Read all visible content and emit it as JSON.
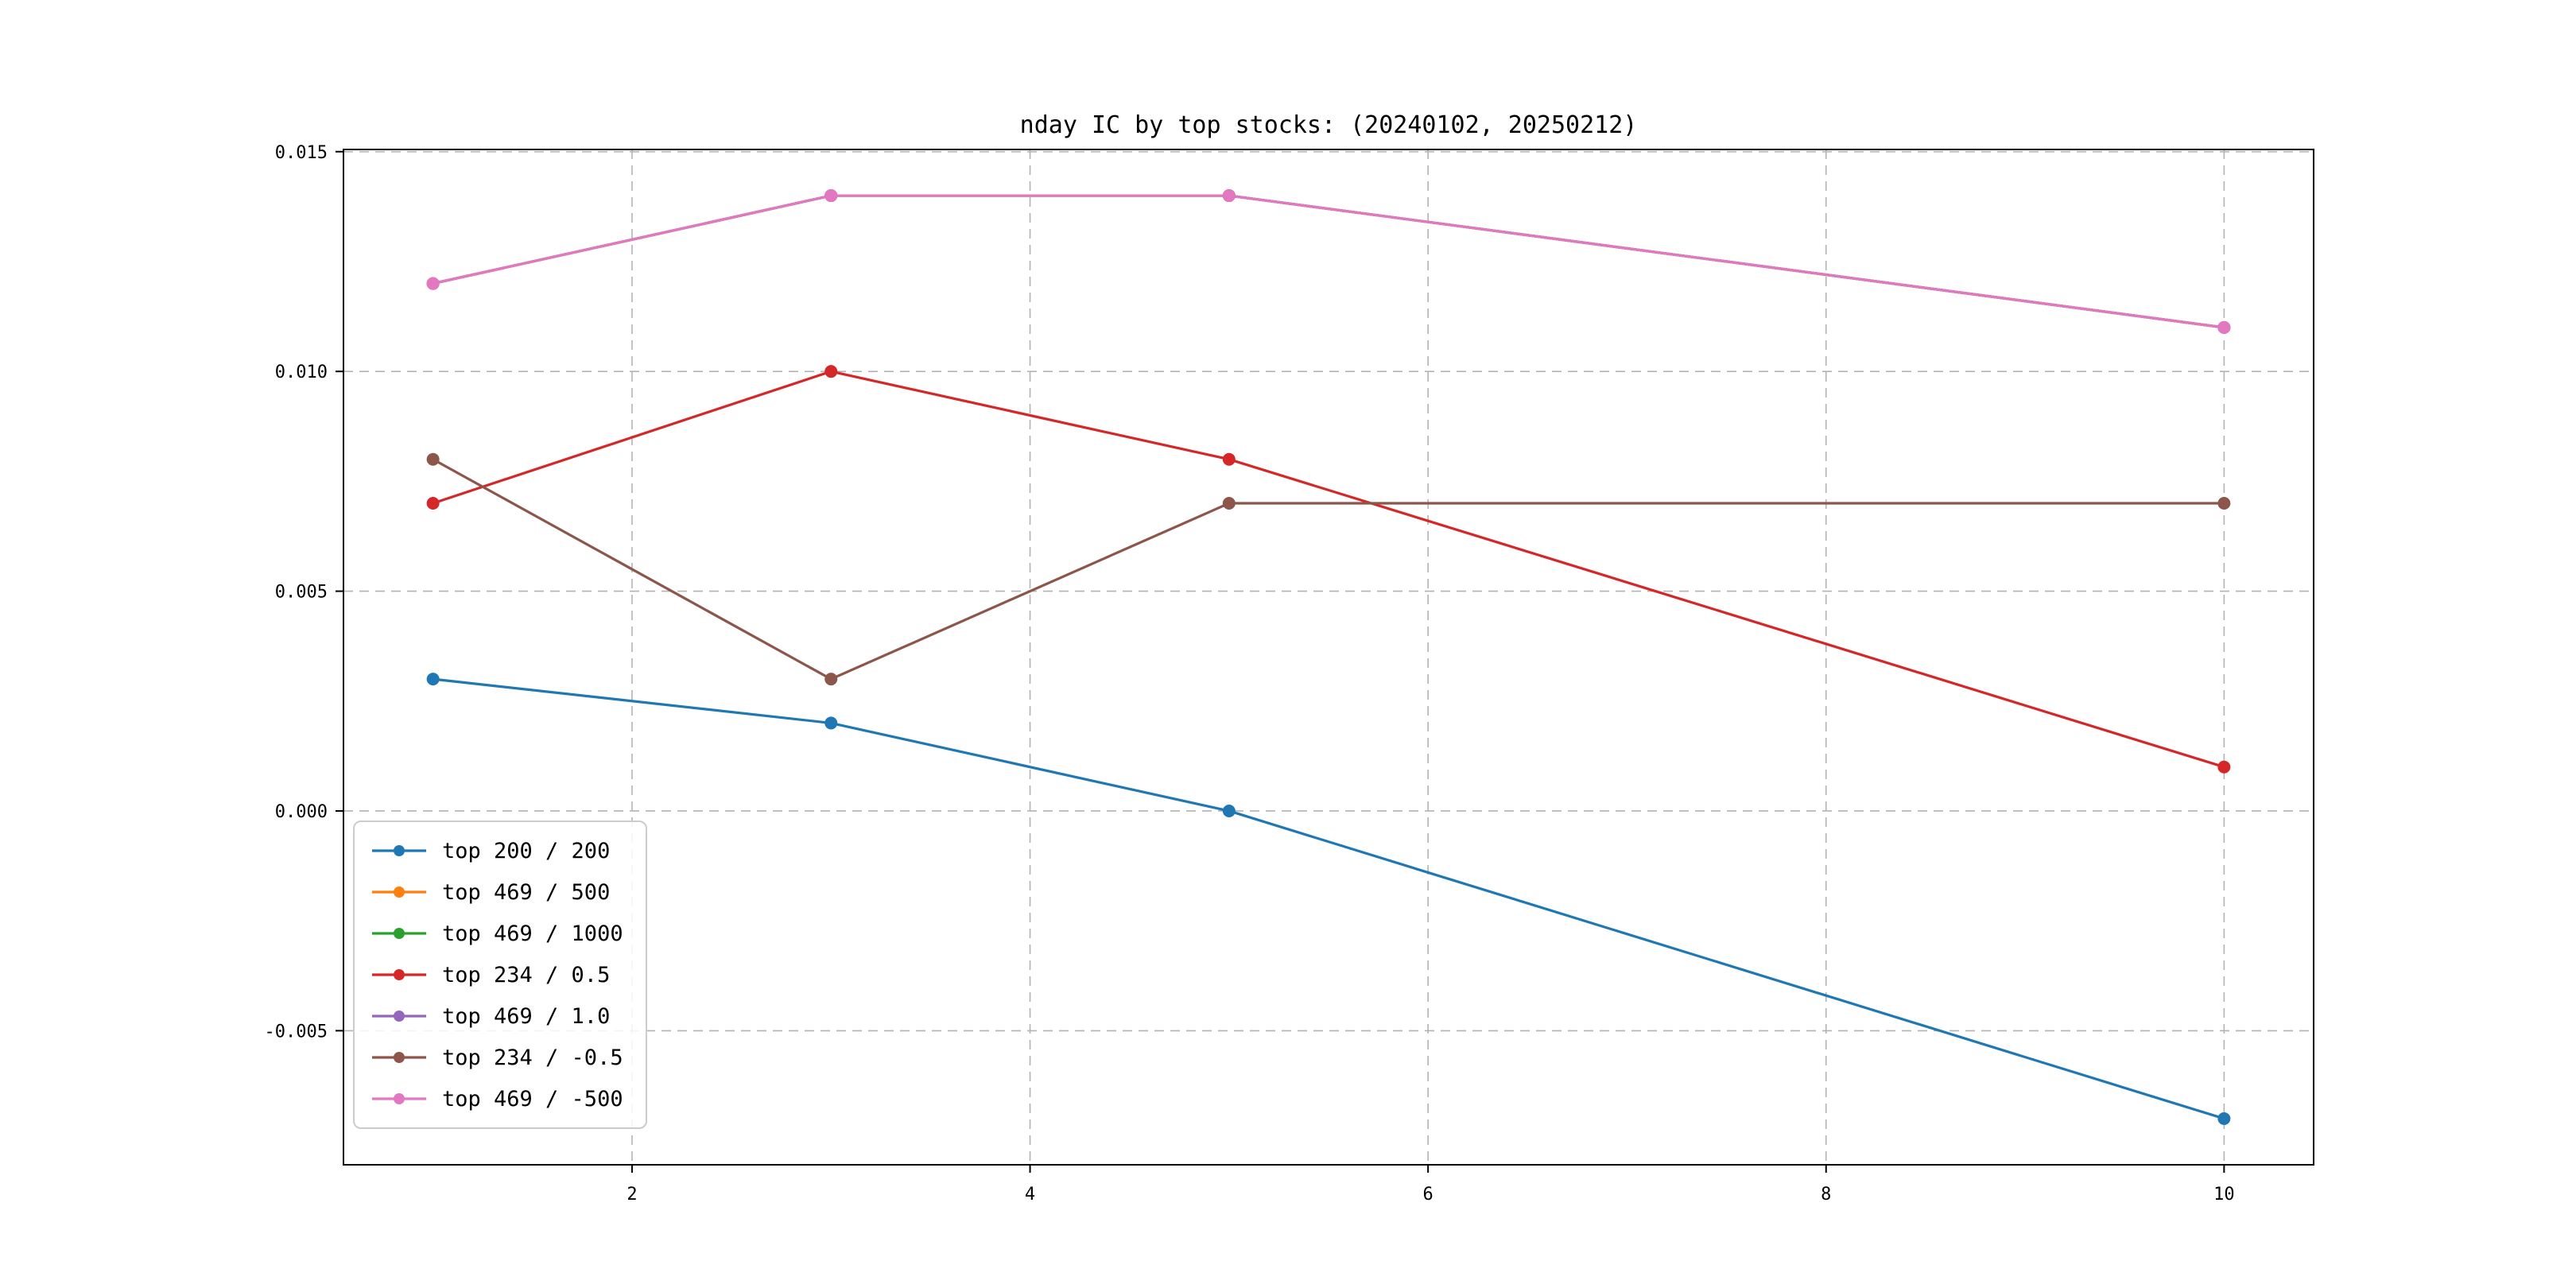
{
  "figure": {
    "background": "#ffffff"
  },
  "chart_data": {
    "type": "line",
    "title": "nday IC by top stocks: (20240102, 20250212)",
    "x": [
      1,
      3,
      5,
      10
    ],
    "series": [
      {
        "name": "top 200 / 200",
        "color": "#1f77b4",
        "values": [
          0.003,
          0.002,
          0.0,
          -0.007
        ]
      },
      {
        "name": "top 469 / 500",
        "color": "#ff7f0e",
        "values": [
          0.012,
          0.014,
          0.014,
          0.011
        ],
        "note": "line coincides with top 469 / -500 and is hidden beneath it"
      },
      {
        "name": "top 469 / 1000",
        "color": "#2ca02c",
        "values": [
          0.012,
          0.014,
          0.014,
          0.011
        ],
        "note": "line coincides with top 469 / -500 and is hidden beneath it"
      },
      {
        "name": "top 234 / 0.5",
        "color": "#d62728",
        "values": [
          0.007,
          0.01,
          0.008,
          0.001
        ]
      },
      {
        "name": "top 469 / 1.0",
        "color": "#9467bd",
        "values": [
          0.012,
          0.014,
          0.014,
          0.011
        ],
        "note": "line coincides with top 469 / -500 and is hidden beneath it"
      },
      {
        "name": "top 234 / -0.5",
        "color": "#8c564b",
        "values": [
          0.008,
          0.003,
          0.007,
          0.007
        ]
      },
      {
        "name": "top 469 / -500",
        "color": "#e377c2",
        "values": [
          0.012,
          0.014,
          0.014,
          0.011
        ]
      }
    ],
    "xlim": [
      0.55,
      10.45
    ],
    "ylim": [
      -0.00805,
      0.01505
    ],
    "xticks": [
      2,
      4,
      6,
      8,
      10
    ],
    "xtick_labels": [
      "2",
      "4",
      "6",
      "8",
      "10"
    ],
    "yticks": [
      -0.005,
      0.0,
      0.005,
      0.01,
      0.015
    ],
    "ytick_labels": [
      "-0.005",
      "0.000",
      "0.005",
      "0.010",
      "0.015"
    ],
    "grid": true,
    "grid_color": "#b3b3b3",
    "legend_position": "lower left"
  }
}
